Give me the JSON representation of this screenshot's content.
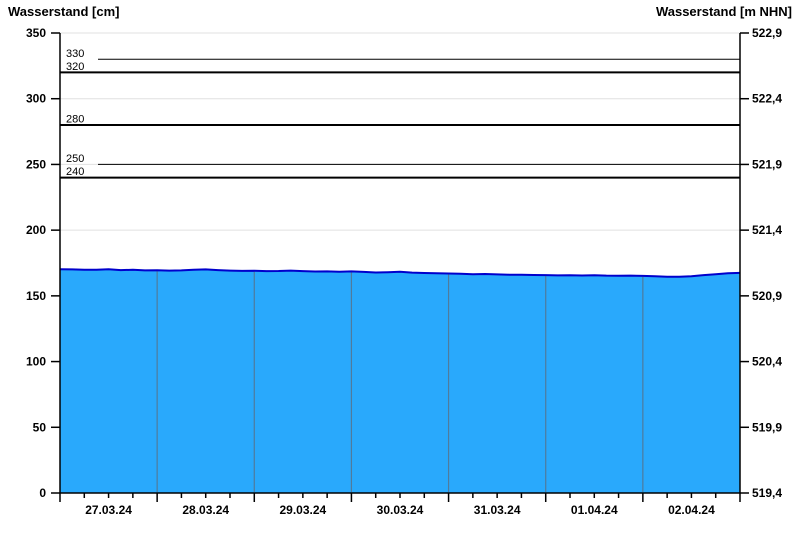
{
  "titles": {
    "left": "Wasserstand [cm]",
    "right": "Wasserstand [m NHN]"
  },
  "chart_data": {
    "type": "area",
    "title": "",
    "xlabel": "",
    "ylabel_left": "Wasserstand [cm]",
    "ylabel_right": "Wasserstand [m NHN]",
    "x_day_labels": [
      "27.03.24",
      "28.03.24",
      "29.03.24",
      "30.03.24",
      "31.03.24",
      "01.04.24",
      "02.04.24"
    ],
    "x_range_hours": [
      0,
      168
    ],
    "x_minor_tick_hours": 6,
    "x_major_tick_hours": 24,
    "left_axis": {
      "range": [
        0,
        350
      ],
      "ticks": [
        0,
        50,
        100,
        150,
        200,
        250,
        300,
        350
      ]
    },
    "right_axis": {
      "tick_labels": [
        "519,4",
        "519,9",
        "520,4",
        "520,9",
        "521,4",
        "521,9",
        "522,4",
        "522,9"
      ]
    },
    "reference_lines": [
      {
        "value": 330,
        "label": "330",
        "weight": "thin"
      },
      {
        "value": 320,
        "label": "320",
        "weight": "thick"
      },
      {
        "value": 280,
        "label": "280",
        "weight": "thick"
      },
      {
        "value": 250,
        "label": "250",
        "weight": "thin"
      },
      {
        "value": 240,
        "label": "240",
        "weight": "thick"
      }
    ],
    "series": [
      {
        "name": "Wasserstand",
        "step_hours": 3,
        "values": [
          170.3,
          170.1,
          169.8,
          169.9,
          170.2,
          169.6,
          169.8,
          169.4,
          169.5,
          169.2,
          169.4,
          169.8,
          170.1,
          169.6,
          169.2,
          169.0,
          169.1,
          168.8,
          168.9,
          169.2,
          168.8,
          168.5,
          168.6,
          168.4,
          168.6,
          168.2,
          167.8,
          168.0,
          168.3,
          167.7,
          167.4,
          167.2,
          167.0,
          166.8,
          166.5,
          166.6,
          166.3,
          166.1,
          166.0,
          165.9,
          165.8,
          165.6,
          165.7,
          165.5,
          165.7,
          165.4,
          165.3,
          165.4,
          165.2,
          164.9,
          164.6,
          164.5,
          164.9,
          165.8,
          166.4,
          167.2,
          167.5
        ]
      }
    ],
    "colors": {
      "fill": "#29A9FC",
      "line": "#0000CC",
      "day_separator": "#4F7B9C",
      "grid": "#E0E0E0",
      "axis": "#000000"
    },
    "grid": "horizontal-faint",
    "legend": "none"
  }
}
